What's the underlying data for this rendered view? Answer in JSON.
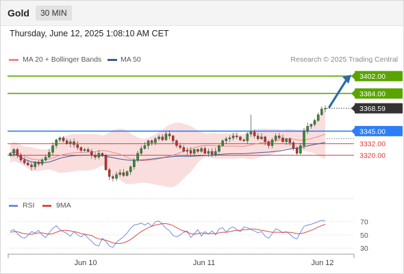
{
  "header": {
    "instrument": "Gold",
    "timeframe": "30 MIN",
    "datetime": "Thursday, June 12, 2025 1:08:10 AM CET"
  },
  "legend": {
    "bollinger_label": "MA 20 + Bollinger Bands",
    "ma50_label": "MA 50",
    "copyright": "Research © 2025 Trading Central"
  },
  "rsi_legend": {
    "rsi_label": "RSI",
    "ma_label": "9MA"
  },
  "colors": {
    "resistance": "#5aa400",
    "pivot": "#2d7df6",
    "support": "#d93a3a",
    "current": "#333333",
    "bull": "#2f8f2f",
    "bear": "#cf2a2a",
    "band_fill": "#f8d3d3",
    "ma20": "#e98a8a",
    "ma50": "#3a5a9a",
    "arrow": "#2c6aa8",
    "rsi": "#6f8fd8",
    "rsi_ma": "#d94a4a"
  },
  "chart_data": [
    {
      "type": "candlestick",
      "price_levels": [
        {
          "label": "3402.00",
          "value": 3402.0,
          "kind": "resistance"
        },
        {
          "label": "3384.00",
          "value": 3384.0,
          "kind": "resistance"
        },
        {
          "label": "3368.59",
          "value": 3368.59,
          "kind": "current"
        },
        {
          "label": "3345.00",
          "value": 3345.0,
          "kind": "pivot"
        },
        {
          "label": "3332.00",
          "value": 3332.0,
          "kind": "support"
        },
        {
          "label": "3320.00",
          "value": 3320.0,
          "kind": "support"
        }
      ],
      "x_ticks": [
        "Jun 10",
        "Jun 11",
        "Jun 12"
      ],
      "ylim": [
        3280,
        3412
      ],
      "series": [
        {
          "name": "MA 20 + Bollinger Bands"
        },
        {
          "name": "MA 50"
        }
      ],
      "closes": [
        3322,
        3326,
        3320,
        3315,
        3312,
        3310,
        3308,
        3313,
        3311,
        3315,
        3318,
        3323,
        3330,
        3336,
        3338,
        3335,
        3332,
        3334,
        3331,
        3328,
        3325,
        3326,
        3324,
        3320,
        3318,
        3322,
        3320,
        3305,
        3298,
        3296,
        3300,
        3302,
        3299,
        3303,
        3308,
        3315,
        3322,
        3327,
        3330,
        3335,
        3333,
        3337,
        3339,
        3336,
        3342,
        3340,
        3335,
        3330,
        3328,
        3324,
        3325,
        3322,
        3326,
        3324,
        3327,
        3322,
        3324,
        3321,
        3324,
        3330,
        3335,
        3337,
        3338,
        3340,
        3339,
        3336,
        3335,
        3342,
        3344,
        3340,
        3337,
        3339,
        3334,
        3330,
        3336,
        3340,
        3338,
        3334,
        3337,
        3333,
        3327,
        3322,
        3330,
        3345,
        3350,
        3352,
        3356,
        3362,
        3368,
        3368.59
      ],
      "forecast_target": 3402.0
    },
    {
      "type": "line",
      "title": "RSI",
      "y_ticks": [
        70,
        50,
        30
      ],
      "ylim": [
        25,
        80
      ],
      "series": [
        {
          "name": "RSI",
          "values": [
            56,
            58,
            52,
            47,
            45,
            49,
            55,
            53,
            57,
            50,
            46,
            53,
            60,
            64,
            58,
            55,
            52,
            48,
            55,
            50,
            47,
            51,
            45,
            40,
            35,
            33,
            45,
            40,
            33,
            31,
            39,
            43,
            47,
            53,
            60,
            65,
            66,
            68,
            65,
            68,
            63,
            70,
            71,
            66,
            60,
            56,
            49,
            47,
            50,
            54,
            56,
            46,
            52,
            58,
            48,
            55,
            51,
            56,
            50,
            59,
            61,
            54,
            60,
            62,
            58,
            55,
            62,
            61,
            58,
            56,
            53,
            55,
            48,
            45,
            52,
            59,
            57,
            53,
            55,
            51,
            46,
            44,
            54,
            63,
            65,
            66,
            68,
            70,
            72,
            71
          ]
        },
        {
          "name": "9MA",
          "values": [
            54,
            55,
            55,
            53,
            52,
            51,
            51,
            52,
            53,
            53,
            52,
            51,
            52,
            54,
            56,
            57,
            57,
            56,
            55,
            54,
            52,
            51,
            50,
            49,
            46,
            44,
            43,
            42,
            40,
            38,
            37,
            37,
            38,
            40,
            43,
            47,
            51,
            55,
            58,
            61,
            63,
            65,
            66,
            67,
            67,
            66,
            64,
            61,
            58,
            56,
            54,
            52,
            51,
            52,
            53,
            52,
            52,
            52,
            52,
            53,
            54,
            54,
            55,
            56,
            57,
            57,
            58,
            58,
            59,
            59,
            58,
            57,
            56,
            55,
            54,
            54,
            54,
            54,
            54,
            54,
            53,
            52,
            52,
            53,
            55,
            57,
            59,
            62,
            64,
            66
          ]
        }
      ]
    }
  ]
}
